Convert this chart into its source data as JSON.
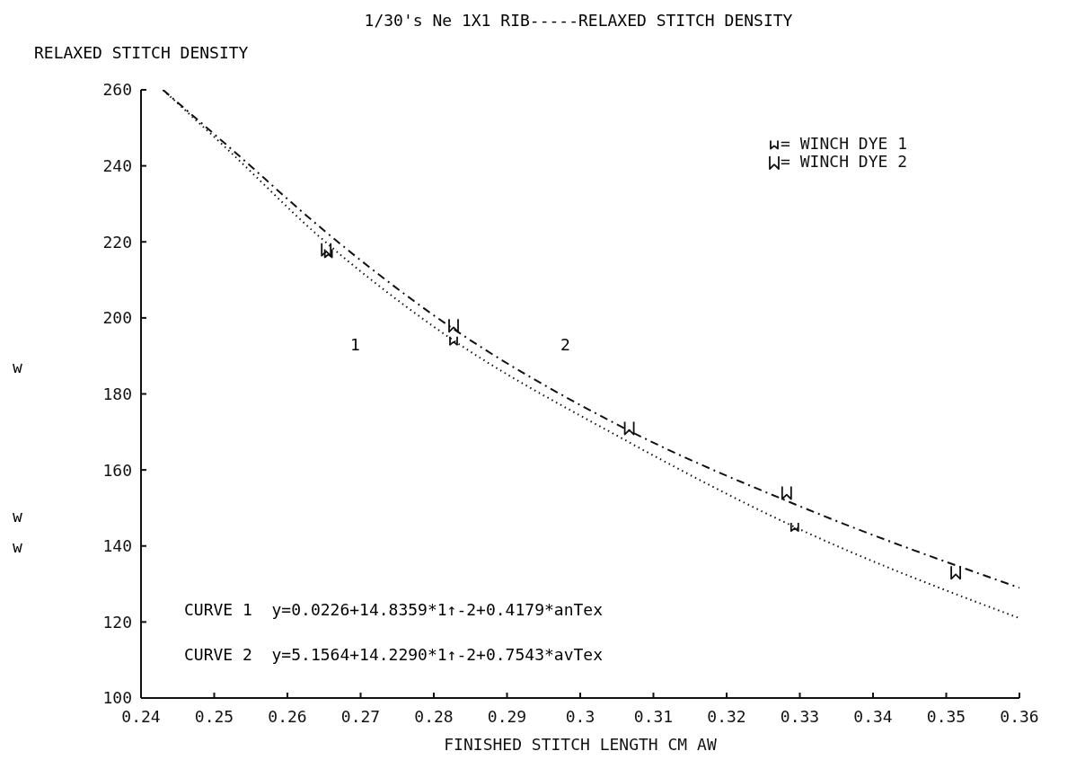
{
  "chart_data": {
    "type": "scatter",
    "title": "1/30's Ne 1X1 RIB-----RELAXED STITCH DENSITY",
    "ylabel": "RELAXED STITCH DENSITY",
    "xlabel": "FINISHED STITCH LENGTH CM AW",
    "xlim": [
      0.24,
      0.36
    ],
    "xticks": [
      0.24,
      0.25,
      0.26,
      0.27,
      0.28,
      0.29,
      0.3,
      0.31,
      0.32,
      0.33,
      0.34,
      0.35,
      0.36
    ],
    "ylim": [
      100,
      260
    ],
    "yticks": [
      100,
      120,
      140,
      160,
      180,
      200,
      220,
      240,
      260
    ],
    "grid": false,
    "legend": "top right",
    "series": [
      {
        "type": "line",
        "color": "#111111",
        "line_style": "dotted",
        "x": [
          0.243,
          0.252,
          0.264,
          0.2805,
          0.306,
          0.3293,
          0.36
        ],
        "values": [
          260,
          244,
          222,
          197,
          168,
          145,
          121
        ]
      },
      {
        "type": "line",
        "color": "#111111",
        "line_style": "dashed",
        "x": [
          0.243,
          0.252,
          0.265,
          0.2805,
          0.306,
          0.3293,
          0.36
        ],
        "values": [
          260,
          245,
          223,
          200,
          171,
          151,
          129
        ]
      },
      {
        "name": "= WINCH DYE 1",
        "color": "#111111",
        "x": [
          0.2656,
          0.2827,
          0.3293
        ],
        "values": [
          217,
          194,
          145
        ]
      },
      {
        "name": "= WINCH DYE 2",
        "color": "#111111",
        "x": [
          0.2653,
          0.2827,
          0.3067,
          0.3282,
          0.3513
        ],
        "values": [
          218,
          198,
          171,
          154,
          133
        ]
      }
    ],
    "annotations": [
      "1",
      "2",
      "CURVE 1  y=0.0226+14.8359*1↑-2+0.4179*anTex",
      "CURVE 2  y=5.1564+14.2290*1↑-2+0.7543*avTex",
      "w",
      "w",
      "w"
    ]
  }
}
